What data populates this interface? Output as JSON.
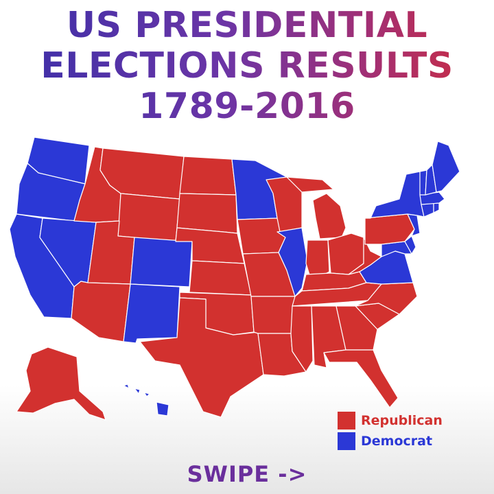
{
  "title": {
    "line1": "US PRESIDENTIAL",
    "line2": "ELECTIONS RESULTS",
    "line3": "1789-2016"
  },
  "colors": {
    "republican": "#d2312f",
    "democrat": "#2b38d6",
    "border": "#ffffff",
    "title_start": "#3a2fa8",
    "title_end": "#cf2c3d",
    "swipe": "#6a2f9c"
  },
  "legend": {
    "republican_label": "Republican",
    "democrat_label": "Democrat"
  },
  "swipe_text": "SWIPE ->",
  "states": {
    "WA": "D",
    "OR": "D",
    "CA": "D",
    "NV": "D",
    "ID": "R",
    "MT": "R",
    "WY": "R",
    "UT": "R",
    "AZ": "R",
    "CO": "D",
    "NM": "D",
    "ND": "R",
    "SD": "R",
    "NE": "R",
    "KS": "R",
    "OK": "R",
    "TX": "R",
    "MN": "D",
    "IA": "R",
    "MO": "R",
    "AR": "R",
    "LA": "R",
    "WI": "R",
    "IL": "D",
    "MI": "R",
    "IN": "R",
    "OH": "R",
    "KY": "R",
    "TN": "R",
    "MS": "R",
    "AL": "R",
    "GA": "R",
    "FL": "R",
    "SC": "R",
    "NC": "R",
    "VA": "D",
    "WV": "R",
    "MD": "D",
    "DE": "D",
    "PA": "R",
    "NJ": "D",
    "NY": "D",
    "CT": "D",
    "RI": "D",
    "MA": "D",
    "VT": "D",
    "NH": "D",
    "ME": "D",
    "AK": "R",
    "HI": "D"
  }
}
